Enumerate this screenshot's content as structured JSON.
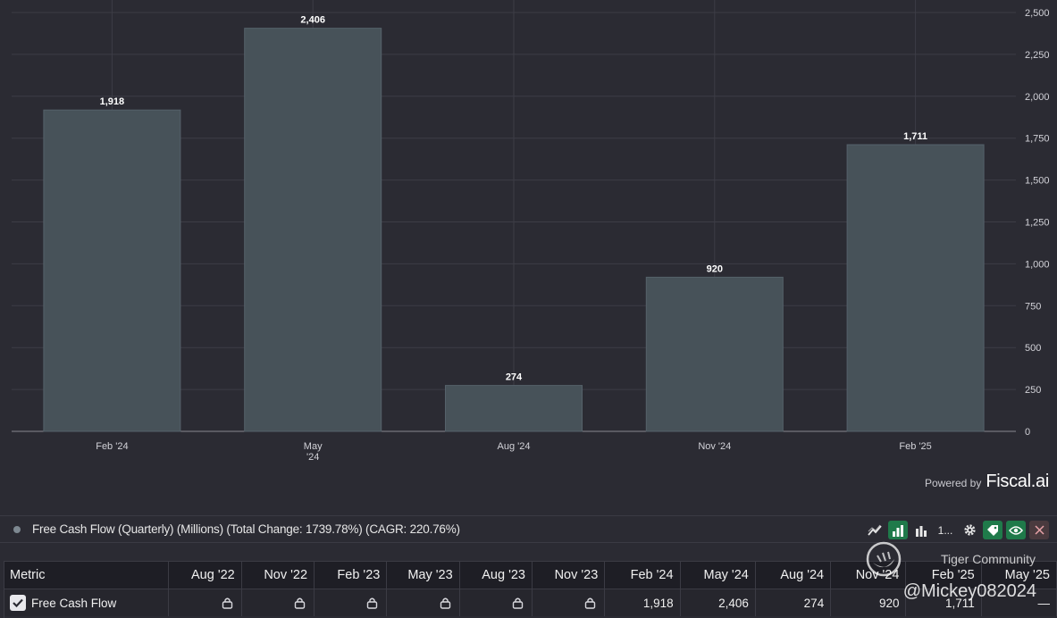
{
  "chart_data": {
    "type": "bar",
    "categories": [
      "Feb '24",
      "May '24",
      "Aug '24",
      "Nov '24",
      "Feb '25"
    ],
    "category_lines": [
      [
        "Feb '24"
      ],
      [
        "May",
        "'24"
      ],
      [
        "Aug '24"
      ],
      [
        "Nov '24"
      ],
      [
        "Feb '25"
      ]
    ],
    "values": [
      1918,
      2406,
      274,
      920,
      1711
    ],
    "value_labels": [
      "1,918",
      "2,406",
      "274",
      "920",
      "1,711"
    ],
    "ylim": [
      0,
      2500
    ],
    "yticks": [
      0,
      250,
      500,
      750,
      1000,
      1250,
      1500,
      1750,
      2000,
      2250,
      2500
    ],
    "ytick_labels": [
      "0",
      "250",
      "500",
      "750",
      "1,000",
      "1,250",
      "1,500",
      "1,750",
      "2,000",
      "2,250",
      "2,500"
    ],
    "grid": true,
    "bar_color": "#475259",
    "y_axis_side": "right"
  },
  "branding": {
    "powered_by": "Powered by",
    "brand": "Fiscal.ai"
  },
  "legend": {
    "label": "Free Cash Flow (Quarterly) (Millions) (Total Change: 1739.78%) (CAGR: 220.76%)",
    "dot_color": "#7d8891"
  },
  "toolbar": {
    "items": [
      "trend-line-icon",
      "bar-chart-icon",
      "bar-chart-icon",
      "sort-icon",
      "gear-icon",
      "tag-icon",
      "eye-icon",
      "close-icon"
    ],
    "sort_text": "1..."
  },
  "table": {
    "metric_header": "Metric",
    "columns": [
      "Aug '22",
      "Nov '22",
      "Feb '23",
      "May '23",
      "Aug '23",
      "Nov '23",
      "Feb '24",
      "May '24",
      "Aug '24",
      "Nov '24",
      "Feb '25",
      "May '25"
    ],
    "row": {
      "label": "Free Cash Flow",
      "locked": [
        true,
        true,
        true,
        true,
        true,
        true,
        false,
        false,
        false,
        false,
        false,
        false
      ],
      "values": [
        "",
        "",
        "",
        "",
        "",
        "",
        "1,918",
        "2,406",
        "274",
        "920",
        "1,711",
        "—"
      ]
    }
  },
  "watermark": {
    "text": "Tiger Community",
    "handle": "@Mickey082024"
  }
}
